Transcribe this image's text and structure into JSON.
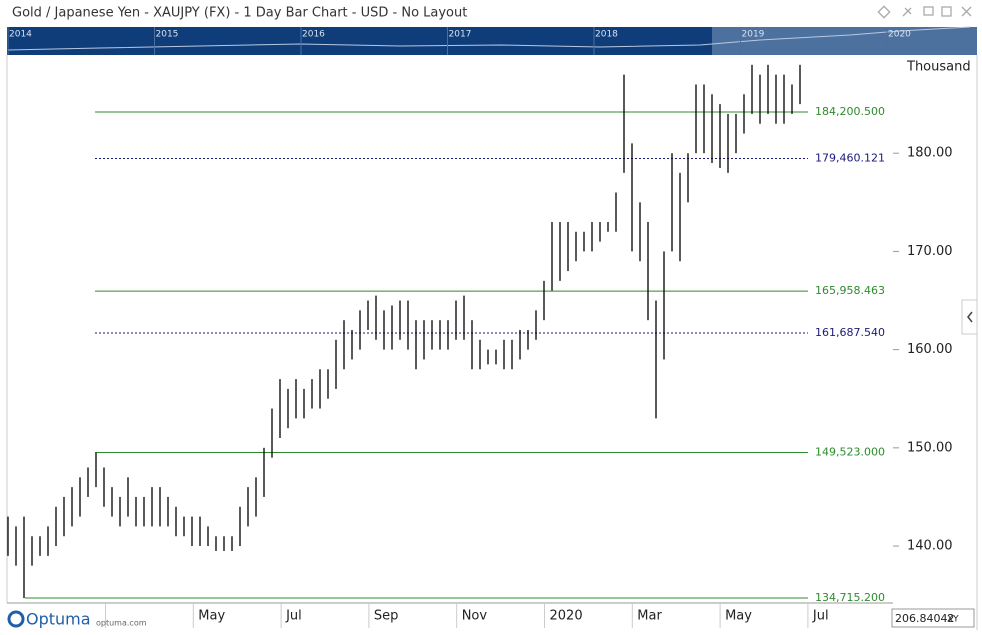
{
  "header": {
    "title": "Gold / Japanese Yen - XAUJPY (FX) - 1 Day Bar Chart - USD - No Layout"
  },
  "navigator": {
    "years": [
      "2014",
      "2015",
      "2016",
      "2017",
      "2018",
      "2019",
      "2020"
    ]
  },
  "chart_data": {
    "type": "ohlc",
    "unit_label": "Thousand",
    "color": "#000000",
    "categories": [
      null,
      "May",
      "Jul",
      "Sep",
      "Nov",
      "2020",
      "Mar",
      "May",
      "Jul"
    ],
    "ylim": [
      134.2,
      190
    ],
    "yticks": [
      {
        "value": 140,
        "label": "140.00"
      },
      {
        "value": 150,
        "label": "150.00"
      },
      {
        "value": 160,
        "label": "160.00"
      },
      {
        "value": 170,
        "label": "170.00"
      },
      {
        "value": 180,
        "label": "180.00"
      }
    ],
    "high": [
      143,
      142,
      143,
      141,
      141,
      142,
      144,
      145,
      146,
      147,
      148,
      149.5,
      148,
      146,
      145,
      147,
      145,
      145,
      146,
      146,
      145,
      144,
      143,
      143,
      143,
      142,
      141,
      141,
      141,
      144,
      146,
      147,
      150,
      154,
      157,
      156,
      157,
      156,
      157,
      158,
      158,
      161,
      163,
      162,
      164,
      165,
      165.5,
      164,
      164.5,
      165,
      165,
      163,
      163,
      163,
      163,
      163,
      165,
      165.5,
      163,
      161,
      160,
      160,
      161,
      161,
      162,
      162,
      164,
      167,
      173,
      173,
      173,
      172,
      172,
      173,
      173,
      173,
      176,
      188,
      181,
      175,
      173,
      165,
      170,
      180,
      178,
      180,
      187,
      187,
      186,
      185,
      184,
      184,
      186,
      189,
      188,
      189,
      188,
      188,
      187,
      189
    ],
    "low": [
      139,
      138,
      134.7,
      138,
      139,
      139,
      140,
      141,
      142,
      143,
      145,
      146,
      144,
      143,
      142,
      143,
      142,
      142,
      142,
      142,
      142,
      141,
      141,
      140,
      140,
      140,
      139.5,
      139.5,
      139.5,
      140,
      142,
      143,
      145,
      149,
      151,
      152,
      153,
      153,
      154,
      154,
      155,
      156,
      158,
      159,
      160,
      162,
      161,
      160,
      160,
      161,
      160,
      158,
      159,
      160,
      160,
      160,
      161,
      161,
      158,
      158,
      158.5,
      158.5,
      158,
      158,
      159,
      160,
      161,
      163,
      166,
      167,
      168,
      169,
      170,
      170,
      171,
      172,
      172,
      178,
      170,
      169,
      163,
      153,
      159,
      170,
      169,
      175,
      180,
      180,
      179,
      178.5,
      178,
      180,
      182,
      184,
      183,
      184,
      183,
      183,
      184,
      185
    ],
    "levels": [
      {
        "value": 184.2005,
        "label": "184,200.500",
        "color": "#2e8b2e",
        "style": "solid"
      },
      {
        "value": 179.460121,
        "label": "179,460.121",
        "color": "#1a1a7a",
        "style": "dotted"
      },
      {
        "value": 165.958463,
        "label": "165,958.463",
        "color": "#2e8b2e",
        "style": "solid"
      },
      {
        "value": 161.68754,
        "label": "161,687.540",
        "color": "#1a1a7a",
        "style": "dotted"
      },
      {
        "value": 149.523,
        "label": "149,523.000",
        "color": "#2e8b2e",
        "style": "solid"
      },
      {
        "value": 134.7152,
        "label": "134,715.200",
        "color": "#2e8b2e",
        "style": "solid"
      }
    ]
  },
  "footer": {
    "brand": "Optuma",
    "site": "optuma.com",
    "cursor_value": "206.84042",
    "mode": "XY"
  }
}
